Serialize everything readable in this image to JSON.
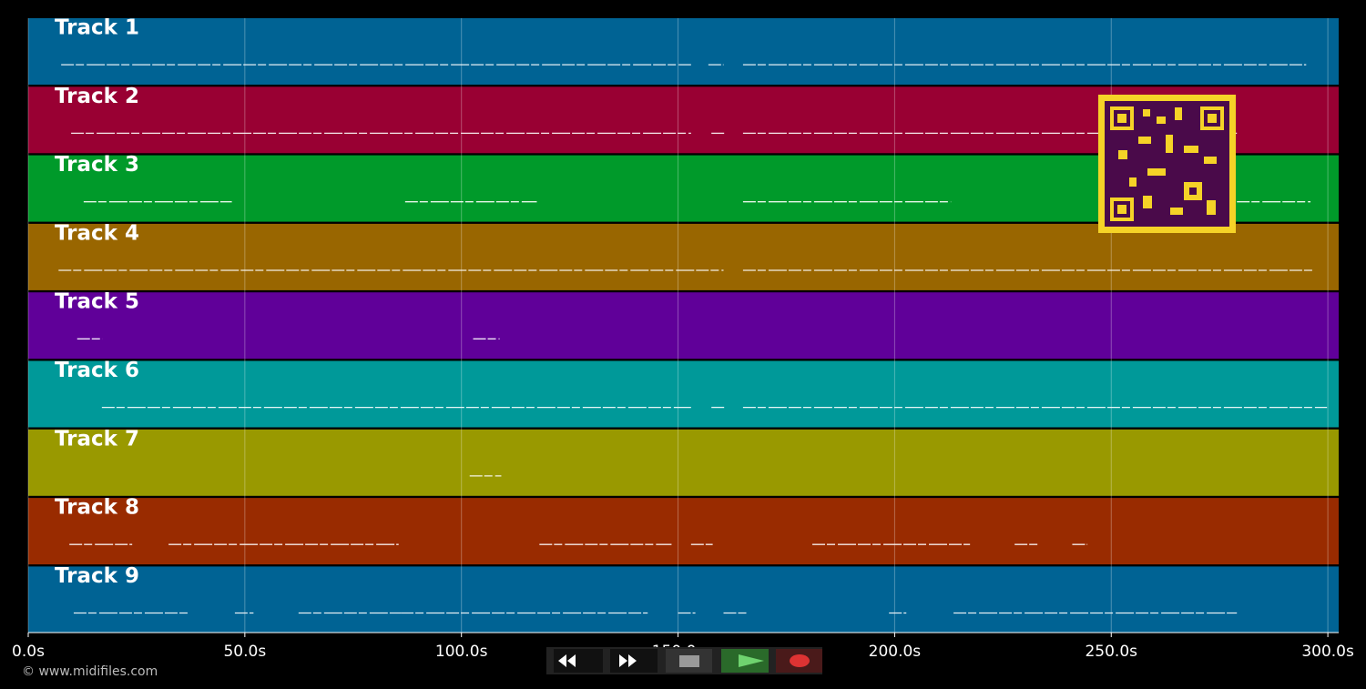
{
  "tracks": [
    {
      "name": "Track 1",
      "color": "#006394",
      "starts": [
        7.6,
        157,
        165
      ],
      "ends": [
        153,
        160.5,
        295
      ]
    },
    {
      "name": "Track 2",
      "color": "#990033",
      "starts": [
        9.9,
        157.7,
        165
      ],
      "ends": [
        153,
        161,
        279
      ]
    },
    {
      "name": "Track 3",
      "color": "#009a2a",
      "starts": [
        12.8,
        87,
        165,
        279
      ],
      "ends": [
        47,
        117.4,
        213,
        296
      ]
    },
    {
      "name": "Track 4",
      "color": "#996600",
      "starts": [
        7,
        165
      ],
      "ends": [
        160.5,
        296.4
      ]
    },
    {
      "name": "Track 5",
      "color": "#600099",
      "starts": [
        11.3,
        102.7
      ],
      "ends": [
        17.2,
        108.8
      ]
    },
    {
      "name": "Track 6",
      "color": "#009999",
      "starts": [
        17,
        157.7,
        165
      ],
      "ends": [
        153,
        161,
        299.8
      ]
    },
    {
      "name": "Track 7",
      "color": "#999900",
      "starts": [
        101.9
      ],
      "ends": [
        109.2
      ]
    },
    {
      "name": "Track 8",
      "color": "#992b00",
      "starts": [
        9.5,
        32.4,
        118,
        153,
        181,
        227.7,
        241
      ],
      "ends": [
        24,
        85.5,
        148.5,
        158,
        217.4,
        233,
        244.5
      ]
    },
    {
      "name": "Track 9",
      "color": "#006394",
      "starts": [
        10.5,
        47.7,
        62.4,
        86,
        150,
        160.5,
        198.7,
        213.6
      ],
      "ends": [
        37,
        52,
        86,
        143,
        154,
        165.8,
        202.7,
        279
      ]
    }
  ],
  "time_axis": {
    "xlim": [
      0,
      302.5
    ],
    "xticks": [
      {
        "value": 0,
        "label": "0.0s"
      },
      {
        "value": 50,
        "label": "50.0s"
      },
      {
        "value": 100,
        "label": "100.0s"
      },
      {
        "value": 150,
        "label": "150.0s"
      },
      {
        "value": 200,
        "label": "200.0s"
      },
      {
        "value": 250,
        "label": "250.0s"
      },
      {
        "value": 300,
        "label": "300.0s"
      }
    ]
  },
  "footer": {
    "copyright": "© www.midifiles.com"
  }
}
